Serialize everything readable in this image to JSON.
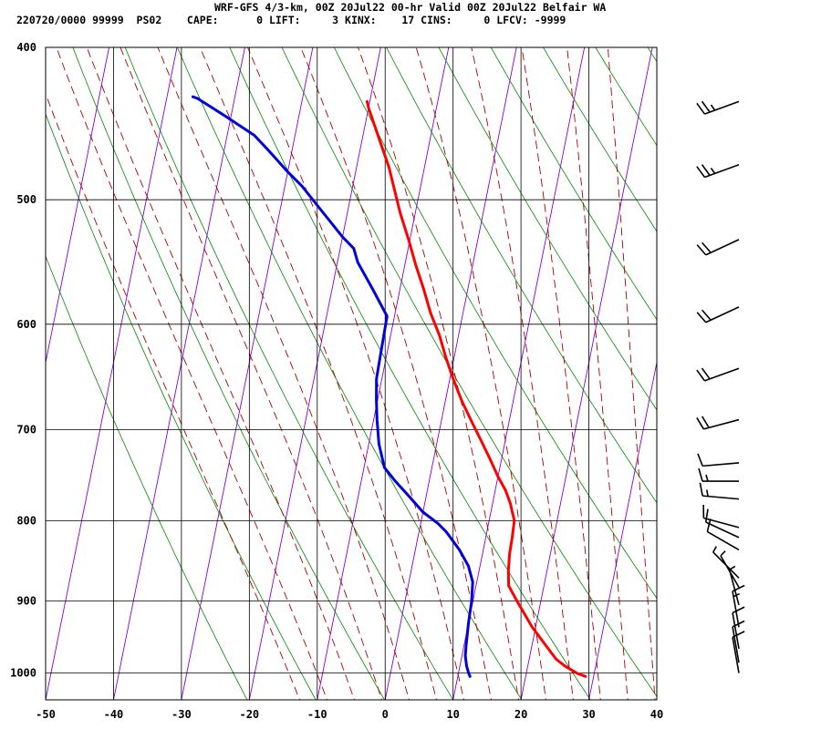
{
  "header": {
    "line1": "WRF-GFS 4/3-km, 00Z 20Jul22 00-hr Valid 00Z 20Jul22 Belfair WA",
    "line2": "220720/0000 99999  PS02    CAPE:      0 LIFT:     3 KINX:    17 CINS:     0 LFCV: -9999"
  },
  "colors": {
    "temperature": "#ff0000",
    "dewpoint": "#0000dd",
    "isotherm": "#8800cc",
    "dry_adiabat": "#008800",
    "moist_adiabat": "#aa0000",
    "grid": "#000000",
    "barb": "#000000"
  },
  "chart_data": {
    "type": "line",
    "title": "",
    "xlabel": "",
    "ylabel": "",
    "xlim": [
      -50,
      40
    ],
    "ylim": [
      1040,
      400
    ],
    "y_scale": "log",
    "x_ticks": [
      -50,
      -40,
      -30,
      -20,
      -10,
      0,
      10,
      20,
      30,
      40
    ],
    "y_ticks": [
      400,
      500,
      600,
      700,
      800,
      900,
      1000
    ],
    "grid": true,
    "series": [
      {
        "key": "temperature",
        "points": [
          [
            28.8,
            1005
          ],
          [
            27.4,
            1000
          ],
          [
            25.5,
            990
          ],
          [
            24.0,
            980
          ],
          [
            22.0,
            960
          ],
          [
            19.5,
            935
          ],
          [
            17.8,
            915
          ],
          [
            16.5,
            900
          ],
          [
            14.8,
            880
          ],
          [
            14.3,
            860
          ],
          [
            14.0,
            840
          ],
          [
            13.9,
            820
          ],
          [
            13.7,
            800
          ],
          [
            12.6,
            780
          ],
          [
            11.5,
            765
          ],
          [
            10.0,
            750
          ],
          [
            8.5,
            733
          ],
          [
            6.5,
            712
          ],
          [
            4.8,
            695
          ],
          [
            2.5,
            672
          ],
          [
            0.5,
            650
          ],
          [
            -1.2,
            630
          ],
          [
            -2.8,
            610
          ],
          [
            -4.8,
            590
          ],
          [
            -6.5,
            570
          ],
          [
            -8.4,
            550
          ],
          [
            -10.2,
            530
          ],
          [
            -12.2,
            510
          ],
          [
            -14.0,
            490
          ],
          [
            -15.2,
            477
          ],
          [
            -17.8,
            455
          ],
          [
            -20.0,
            437
          ],
          [
            -20.4,
            433
          ]
        ]
      },
      {
        "key": "dewpoint",
        "points": [
          [
            11.8,
            1005
          ],
          [
            11.5,
            1000
          ],
          [
            11.0,
            990
          ],
          [
            10.5,
            975
          ],
          [
            10.3,
            960
          ],
          [
            10.0,
            930
          ],
          [
            9.8,
            900
          ],
          [
            9.4,
            875
          ],
          [
            8.3,
            855
          ],
          [
            6.5,
            835
          ],
          [
            4.0,
            813
          ],
          [
            2.5,
            803
          ],
          [
            0.0,
            790
          ],
          [
            -2.5,
            772
          ],
          [
            -5.0,
            755
          ],
          [
            -7.0,
            740
          ],
          [
            -8.5,
            715
          ],
          [
            -9.5,
            690
          ],
          [
            -10.2,
            670
          ],
          [
            -10.8,
            650
          ],
          [
            -10.9,
            630
          ],
          [
            -11.0,
            610
          ],
          [
            -11.1,
            593
          ],
          [
            -14.0,
            570
          ],
          [
            -17.0,
            548
          ],
          [
            -18.0,
            537
          ],
          [
            -20.0,
            528
          ],
          [
            -23.5,
            510
          ],
          [
            -27.5,
            490
          ],
          [
            -30.0,
            480
          ],
          [
            -33.5,
            465
          ],
          [
            -36.0,
            455
          ],
          [
            -41.0,
            442
          ],
          [
            -45.5,
            431
          ],
          [
            -46.2,
            430
          ]
        ]
      }
    ]
  },
  "wind_barbs": [
    {
      "p": 433,
      "dir": 250,
      "spd": 25
    },
    {
      "p": 475,
      "dir": 250,
      "spd": 25
    },
    {
      "p": 530,
      "dir": 245,
      "spd": 20
    },
    {
      "p": 585,
      "dir": 245,
      "spd": 20
    },
    {
      "p": 640,
      "dir": 250,
      "spd": 20
    },
    {
      "p": 690,
      "dir": 255,
      "spd": 20
    },
    {
      "p": 735,
      "dir": 265,
      "spd": 10
    },
    {
      "p": 755,
      "dir": 270,
      "spd": 15
    },
    {
      "p": 775,
      "dir": 275,
      "spd": 15
    },
    {
      "p": 808,
      "dir": 285,
      "spd": 10
    },
    {
      "p": 820,
      "dir": 295,
      "spd": 10
    },
    {
      "p": 835,
      "dir": 300,
      "spd": 10
    },
    {
      "p": 870,
      "dir": 315,
      "spd": 5
    },
    {
      "p": 882,
      "dir": 330,
      "spd": 5
    },
    {
      "p": 905,
      "dir": 345,
      "spd": 5
    },
    {
      "p": 935,
      "dir": 350,
      "spd": 15
    },
    {
      "p": 965,
      "dir": 350,
      "spd": 10
    },
    {
      "p": 985,
      "dir": 350,
      "spd": 10
    },
    {
      "p": 1000,
      "dir": 350,
      "spd": 10
    }
  ]
}
